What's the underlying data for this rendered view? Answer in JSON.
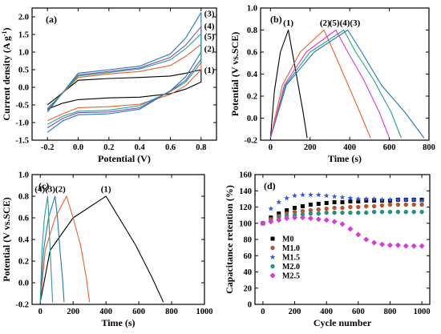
{
  "figure": {
    "background": "#ffffff",
    "axis_color": "#000000"
  },
  "chart_data": [
    {
      "id": "a",
      "panel_label": "(a)",
      "type": "line",
      "title": "",
      "xlabel": "Potential (V)",
      "ylabel": "Current density (A g-1)",
      "xlim": [
        -0.3,
        0.9
      ],
      "ylim": [
        -1.5,
        2.25
      ],
      "xticks": [
        -0.2,
        0.0,
        0.2,
        0.4,
        0.6,
        0.8
      ],
      "xtick_labels": [
        "-0.2",
        "0.0",
        "0.2",
        "0.4",
        "0.6",
        "0.8"
      ],
      "yticks": [
        -1.5,
        -1.0,
        -0.5,
        0.0,
        0.5,
        1.0,
        1.5,
        2.0
      ],
      "ytick_labels": [
        "-1.5",
        "-1.0",
        "-0.5",
        "0.0",
        "0.5",
        "1.0",
        "1.5",
        "2.0"
      ],
      "series": [
        {
          "name": "(1)",
          "color": "#000000",
          "x": [
            -0.2,
            0.0,
            0.2,
            0.4,
            0.6,
            0.7,
            0.8,
            0.8,
            0.7,
            0.6,
            0.4,
            0.2,
            0.0,
            -0.1,
            -0.2
          ],
          "y": [
            -0.5,
            0.2,
            0.25,
            0.28,
            0.32,
            0.4,
            0.5,
            0.15,
            -0.05,
            -0.18,
            -0.28,
            -0.3,
            -0.35,
            -0.45,
            -0.62
          ]
        },
        {
          "name": "(2)",
          "color": "#e8602c",
          "x": [
            -0.2,
            0.0,
            0.2,
            0.4,
            0.6,
            0.7,
            0.8,
            0.8,
            0.7,
            0.6,
            0.4,
            0.2,
            0.0,
            -0.1,
            -0.2
          ],
          "y": [
            -0.6,
            0.28,
            0.38,
            0.45,
            0.62,
            0.88,
            1.22,
            0.5,
            0.05,
            -0.2,
            -0.48,
            -0.55,
            -0.58,
            -0.75,
            -0.95
          ]
        },
        {
          "name": "(3)",
          "color": "#1f77b4",
          "x": [
            -0.2,
            0.0,
            0.2,
            0.4,
            0.6,
            0.7,
            0.8,
            0.8,
            0.7,
            0.6,
            0.4,
            0.2,
            0.0,
            -0.1,
            -0.2
          ],
          "y": [
            -0.7,
            0.4,
            0.5,
            0.6,
            0.95,
            1.4,
            2.12,
            1.0,
            0.3,
            -0.1,
            -0.62,
            -0.75,
            -0.78,
            -0.95,
            -1.28
          ]
        },
        {
          "name": "(4)",
          "color": "#7b4fb3",
          "x": [
            -0.2,
            0.0,
            0.2,
            0.4,
            0.6,
            0.7,
            0.8,
            0.8,
            0.7,
            0.6,
            0.4,
            0.2,
            0.0,
            -0.1,
            -0.2
          ],
          "y": [
            -0.66,
            0.35,
            0.45,
            0.55,
            0.85,
            1.2,
            1.72,
            0.8,
            0.2,
            -0.1,
            -0.58,
            -0.7,
            -0.72,
            -0.88,
            -1.15
          ]
        },
        {
          "name": "(5)",
          "color": "#2a9d8f",
          "x": [
            -0.2,
            0.0,
            0.2,
            0.4,
            0.6,
            0.7,
            0.8,
            0.8,
            0.7,
            0.6,
            0.4,
            0.2,
            0.0,
            -0.1,
            -0.2
          ],
          "y": [
            -0.62,
            0.32,
            0.42,
            0.52,
            0.78,
            1.1,
            1.52,
            0.7,
            0.15,
            -0.12,
            -0.52,
            -0.65,
            -0.68,
            -0.82,
            -1.05
          ]
        }
      ],
      "annotations": [
        {
          "text": "(3)",
          "x": 0.82,
          "y": 2.1
        },
        {
          "text": "(4)",
          "x": 0.82,
          "y": 1.75
        },
        {
          "text": "(5)",
          "x": 0.82,
          "y": 1.45
        },
        {
          "text": "(2)",
          "x": 0.82,
          "y": 1.1
        },
        {
          "text": "(1)",
          "x": 0.82,
          "y": 0.5
        }
      ]
    },
    {
      "id": "b",
      "panel_label": "(b)",
      "type": "line",
      "title": "",
      "xlabel": "Time (s)",
      "ylabel": "Potential (V vs.SCE)",
      "xlim": [
        -50,
        800
      ],
      "ylim": [
        -0.2,
        1.0
      ],
      "xticks": [
        0,
        200,
        400,
        600,
        800
      ],
      "xtick_labels": [
        "0",
        "200",
        "400",
        "600",
        "800"
      ],
      "yticks": [
        -0.2,
        0.0,
        0.2,
        0.4,
        0.6,
        0.8,
        1.0
      ],
      "ytick_labels": [
        "-0.2",
        "0.0",
        "0.2",
        "0.4",
        "0.6",
        "0.8",
        "1.0"
      ],
      "series": [
        {
          "name": "(1)",
          "color": "#000000",
          "x": [
            0,
            20,
            50,
            90,
            110,
            140,
            165,
            185
          ],
          "y": [
            -0.18,
            0.25,
            0.6,
            0.8,
            0.6,
            0.3,
            0.05,
            -0.18
          ]
        },
        {
          "name": "(2)",
          "color": "#e8602c",
          "x": [
            0,
            60,
            150,
            270,
            320,
            380,
            440,
            505
          ],
          "y": [
            -0.18,
            0.3,
            0.6,
            0.8,
            0.6,
            0.35,
            0.1,
            -0.18
          ]
        },
        {
          "name": "(3)",
          "color": "#1f77b4",
          "x": [
            0,
            80,
            220,
            390,
            460,
            560,
            680,
            775
          ],
          "y": [
            -0.18,
            0.3,
            0.6,
            0.8,
            0.6,
            0.3,
            0.05,
            -0.18
          ]
        },
        {
          "name": "(4)",
          "color": "#2a9d8f",
          "x": [
            0,
            75,
            200,
            370,
            430,
            520,
            610,
            660
          ],
          "y": [
            -0.18,
            0.3,
            0.6,
            0.8,
            0.6,
            0.35,
            0.05,
            -0.18
          ]
        },
        {
          "name": "(5)",
          "color": "#d63cd6",
          "x": [
            0,
            70,
            180,
            330,
            390,
            470,
            550,
            600
          ],
          "y": [
            -0.18,
            0.3,
            0.6,
            0.8,
            0.6,
            0.35,
            0.05,
            -0.18
          ]
        }
      ],
      "annotations": [
        {
          "text": "(1)",
          "x": 90,
          "y": 0.87
        },
        {
          "text": "(2)",
          "x": 275,
          "y": 0.87
        },
        {
          "text": "(5)(4)(3)",
          "x": 375,
          "y": 0.87
        }
      ]
    },
    {
      "id": "c",
      "panel_label": "(c)",
      "type": "line",
      "title": "",
      "xlabel": "Time (s)",
      "ylabel": "Potential (V vs.SCE)",
      "xlim": [
        -50,
        1000
      ],
      "ylim": [
        -0.2,
        1.0
      ],
      "xticks": [
        0,
        200,
        400,
        600,
        800,
        1000
      ],
      "xtick_labels": [
        "0",
        "200",
        "400",
        "600",
        "800",
        "1000"
      ],
      "yticks": [
        -0.2,
        0.0,
        0.2,
        0.4,
        0.6,
        0.8,
        1.0
      ],
      "ytick_labels": [
        "-0.2",
        "0.0",
        "0.2",
        "0.4",
        "0.6",
        "0.8",
        "1.0"
      ],
      "series": [
        {
          "name": "(1)",
          "color": "#000000",
          "x": [
            0,
            60,
            200,
            400,
            480,
            580,
            680,
            750
          ],
          "y": [
            -0.18,
            0.3,
            0.6,
            0.8,
            0.6,
            0.35,
            0.05,
            -0.18
          ]
        },
        {
          "name": "(2)",
          "color": "#e8602c",
          "x": [
            0,
            30,
            90,
            160,
            200,
            245,
            280,
            300
          ],
          "y": [
            -0.18,
            0.3,
            0.6,
            0.8,
            0.6,
            0.35,
            0.05,
            -0.18
          ]
        },
        {
          "name": "(3)",
          "color": "#1f77b4",
          "x": [
            0,
            20,
            50,
            90,
            105,
            120,
            135,
            145
          ],
          "y": [
            -0.18,
            0.3,
            0.6,
            0.8,
            0.6,
            0.3,
            0.05,
            -0.18
          ]
        },
        {
          "name": "(4)",
          "color": "#2a9d8f",
          "x": [
            0,
            10,
            25,
            45,
            52,
            60,
            68,
            75
          ],
          "y": [
            -0.18,
            0.3,
            0.6,
            0.8,
            0.6,
            0.3,
            0.05,
            -0.18
          ]
        }
      ],
      "annotations": [
        {
          "text": "(4)(3)(2)",
          "x": 60,
          "y": 0.87
        },
        {
          "text": "(1)",
          "x": 400,
          "y": 0.87
        }
      ]
    },
    {
      "id": "d",
      "panel_label": "(d)",
      "type": "scatter",
      "title": "",
      "xlabel": "Cycle number",
      "ylabel": "Capacitance retention (%)",
      "xlim": [
        -50,
        1050
      ],
      "ylim": [
        0,
        160
      ],
      "xticks": [
        0,
        200,
        400,
        600,
        800,
        1000
      ],
      "xtick_labels": [
        "0",
        "200",
        "400",
        "600",
        "800",
        "1000"
      ],
      "yticks": [
        0,
        20,
        40,
        60,
        80,
        100,
        120,
        140,
        160
      ],
      "ytick_labels": [
        "0",
        "20",
        "40",
        "60",
        "80",
        "100",
        "120",
        "140",
        "160"
      ],
      "legend_position": "middle-left",
      "series": [
        {
          "name": "M0",
          "color": "#000000",
          "marker": "square",
          "x": [
            0,
            50,
            100,
            150,
            200,
            250,
            300,
            350,
            400,
            450,
            500,
            550,
            600,
            650,
            700,
            750,
            800,
            850,
            900,
            950,
            1000
          ],
          "y": [
            100,
            107,
            112,
            116,
            119,
            121,
            123,
            124,
            125,
            126,
            126,
            127,
            127,
            128,
            128,
            128,
            128,
            129,
            129,
            129,
            129
          ]
        },
        {
          "name": "M1.0",
          "color": "#b5562a",
          "marker": "circle",
          "x": [
            0,
            50,
            100,
            150,
            200,
            250,
            300,
            350,
            400,
            450,
            500,
            550,
            600,
            650,
            700,
            750,
            800,
            850,
            900,
            950,
            1000
          ],
          "y": [
            100,
            105,
            109,
            112,
            114,
            115,
            116,
            117,
            118,
            119,
            119,
            120,
            120,
            121,
            121,
            122,
            123,
            123,
            123,
            123,
            123
          ]
        },
        {
          "name": "M1.5",
          "color": "#2f56e0",
          "marker": "star",
          "x": [
            0,
            50,
            100,
            150,
            200,
            250,
            300,
            350,
            400,
            450,
            500,
            550,
            600,
            650,
            700,
            750,
            800,
            850,
            900,
            950,
            1000
          ],
          "y": [
            100,
            118,
            126,
            131,
            134,
            135,
            135,
            135,
            134,
            133,
            132,
            131,
            130,
            130,
            130,
            129,
            129,
            129,
            129,
            129,
            128
          ]
        },
        {
          "name": "M2.0",
          "color": "#2a8f7f",
          "marker": "circle",
          "x": [
            0,
            50,
            100,
            150,
            200,
            250,
            300,
            350,
            400,
            450,
            500,
            550,
            600,
            650,
            700,
            750,
            800,
            850,
            900,
            950,
            1000
          ],
          "y": [
            100,
            103,
            107,
            109,
            110,
            111,
            112,
            112,
            113,
            113,
            113,
            113,
            113,
            113,
            114,
            114,
            114,
            114,
            114,
            114,
            114
          ]
        },
        {
          "name": "M2.5",
          "color": "#d63cd6",
          "marker": "diamond",
          "x": [
            0,
            50,
            100,
            150,
            200,
            250,
            300,
            350,
            400,
            450,
            500,
            550,
            600,
            650,
            700,
            750,
            800,
            850,
            900,
            950,
            1000
          ],
          "y": [
            100,
            102,
            104,
            106,
            107,
            107,
            106,
            105,
            104,
            102,
            99,
            93,
            86,
            80,
            76,
            74,
            73,
            73,
            72,
            72,
            72
          ]
        }
      ]
    }
  ]
}
